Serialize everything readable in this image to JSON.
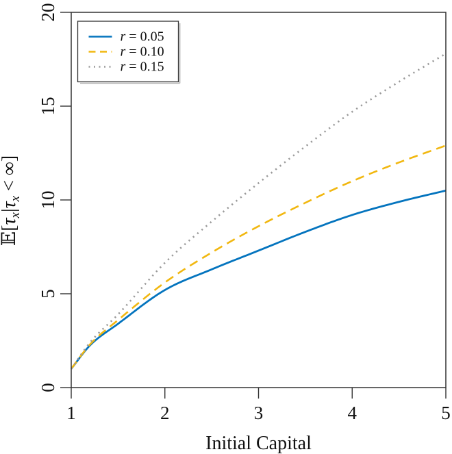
{
  "figure": {
    "background": "#ffffff",
    "axis_color": "#333333",
    "text_color": "#111111"
  },
  "chart_data": {
    "type": "line",
    "title": "",
    "xlabel": "Initial Capital",
    "ylabel": "E[τx|τx < ∞]",
    "ylabel_parts": [
      {
        "text": "𝔼["
      },
      {
        "text": "τ",
        "italic": true
      },
      {
        "text": "x",
        "sub": true,
        "italic": true
      },
      {
        "text": "|"
      },
      {
        "text": "τ",
        "italic": true
      },
      {
        "text": "x",
        "sub": true,
        "italic": true
      },
      {
        "text": " < ∞]"
      }
    ],
    "xlim": [
      1,
      5
    ],
    "ylim": [
      0,
      20
    ],
    "xticks": [
      1,
      2,
      3,
      4,
      5
    ],
    "xtick_labels": [
      "1",
      "2",
      "3",
      "4",
      "5"
    ],
    "yticks": [
      0,
      5,
      10,
      15,
      20
    ],
    "ytick_labels": [
      "0",
      "5",
      "10",
      "15",
      "20"
    ],
    "grid": false,
    "legend_position": "top-left",
    "x": [
      1,
      1.2,
      1.5,
      2,
      2.5,
      3,
      3.5,
      4,
      4.5,
      5
    ],
    "series": [
      {
        "name": "r = 0.05",
        "label_var": "r",
        "label_rest": " = 0.05",
        "color": "#0474BE",
        "style": "solid",
        "values": [
          1.0,
          2.25,
          3.4,
          5.2,
          6.3,
          7.3,
          8.3,
          9.2,
          9.9,
          10.5
        ]
      },
      {
        "name": "r = 0.10",
        "label_var": "r",
        "label_rest": " = 0.10",
        "color": "#F1B70F",
        "style": "dashed",
        "values": [
          1.0,
          2.3,
          3.6,
          5.6,
          7.2,
          8.6,
          9.85,
          11.0,
          12.0,
          12.9
        ]
      },
      {
        "name": "r = 0.15",
        "label_var": "r",
        "label_rest": " = 0.15",
        "color": "#9A9A9A",
        "style": "dotted",
        "values": [
          1.0,
          2.4,
          3.9,
          6.65,
          8.85,
          10.9,
          12.85,
          14.7,
          16.3,
          17.8
        ]
      }
    ]
  }
}
